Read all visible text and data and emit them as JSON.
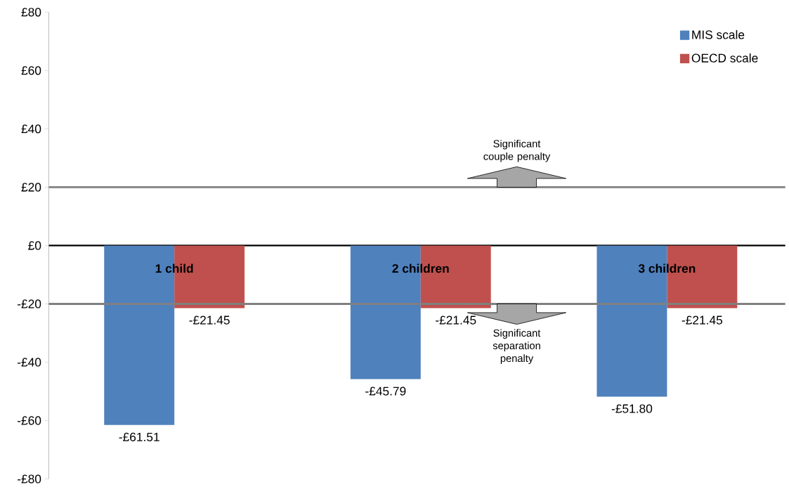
{
  "chart_data": {
    "type": "bar",
    "categories": [
      "1 child",
      "2 children",
      "3 children"
    ],
    "series": [
      {
        "name": "MIS scale",
        "color": "#4f81bd",
        "values": [
          -61.51,
          -45.79,
          -51.8
        ],
        "value_labels": [
          "-£61.51",
          "-£45.79",
          "-£51.80"
        ]
      },
      {
        "name": "OECD scale",
        "color": "#c0504d",
        "values": [
          -21.45,
          -21.45,
          -21.45
        ],
        "value_labels": [
          "-£21.45",
          "-£21.45",
          "-£21.45"
        ]
      }
    ],
    "ylim": [
      -80,
      80
    ],
    "yticks": [
      {
        "value": -80,
        "label": "-£80"
      },
      {
        "value": -60,
        "label": "-£60"
      },
      {
        "value": -40,
        "label": "-£40"
      },
      {
        "value": -20,
        "label": "-£20"
      },
      {
        "value": 0,
        "label": "£0"
      },
      {
        "value": 20,
        "label": "£20"
      },
      {
        "value": 40,
        "label": "£40"
      },
      {
        "value": 60,
        "label": "£60"
      },
      {
        "value": 80,
        "label": "£80"
      }
    ],
    "ref_lines": [
      {
        "axis": "y",
        "value": 20,
        "label": "Significant couple penalty",
        "color": "#808080"
      },
      {
        "axis": "y",
        "value": -20,
        "label": "Significant separation penalty",
        "color": "#808080"
      }
    ],
    "legend": "top right",
    "grid": false
  }
}
